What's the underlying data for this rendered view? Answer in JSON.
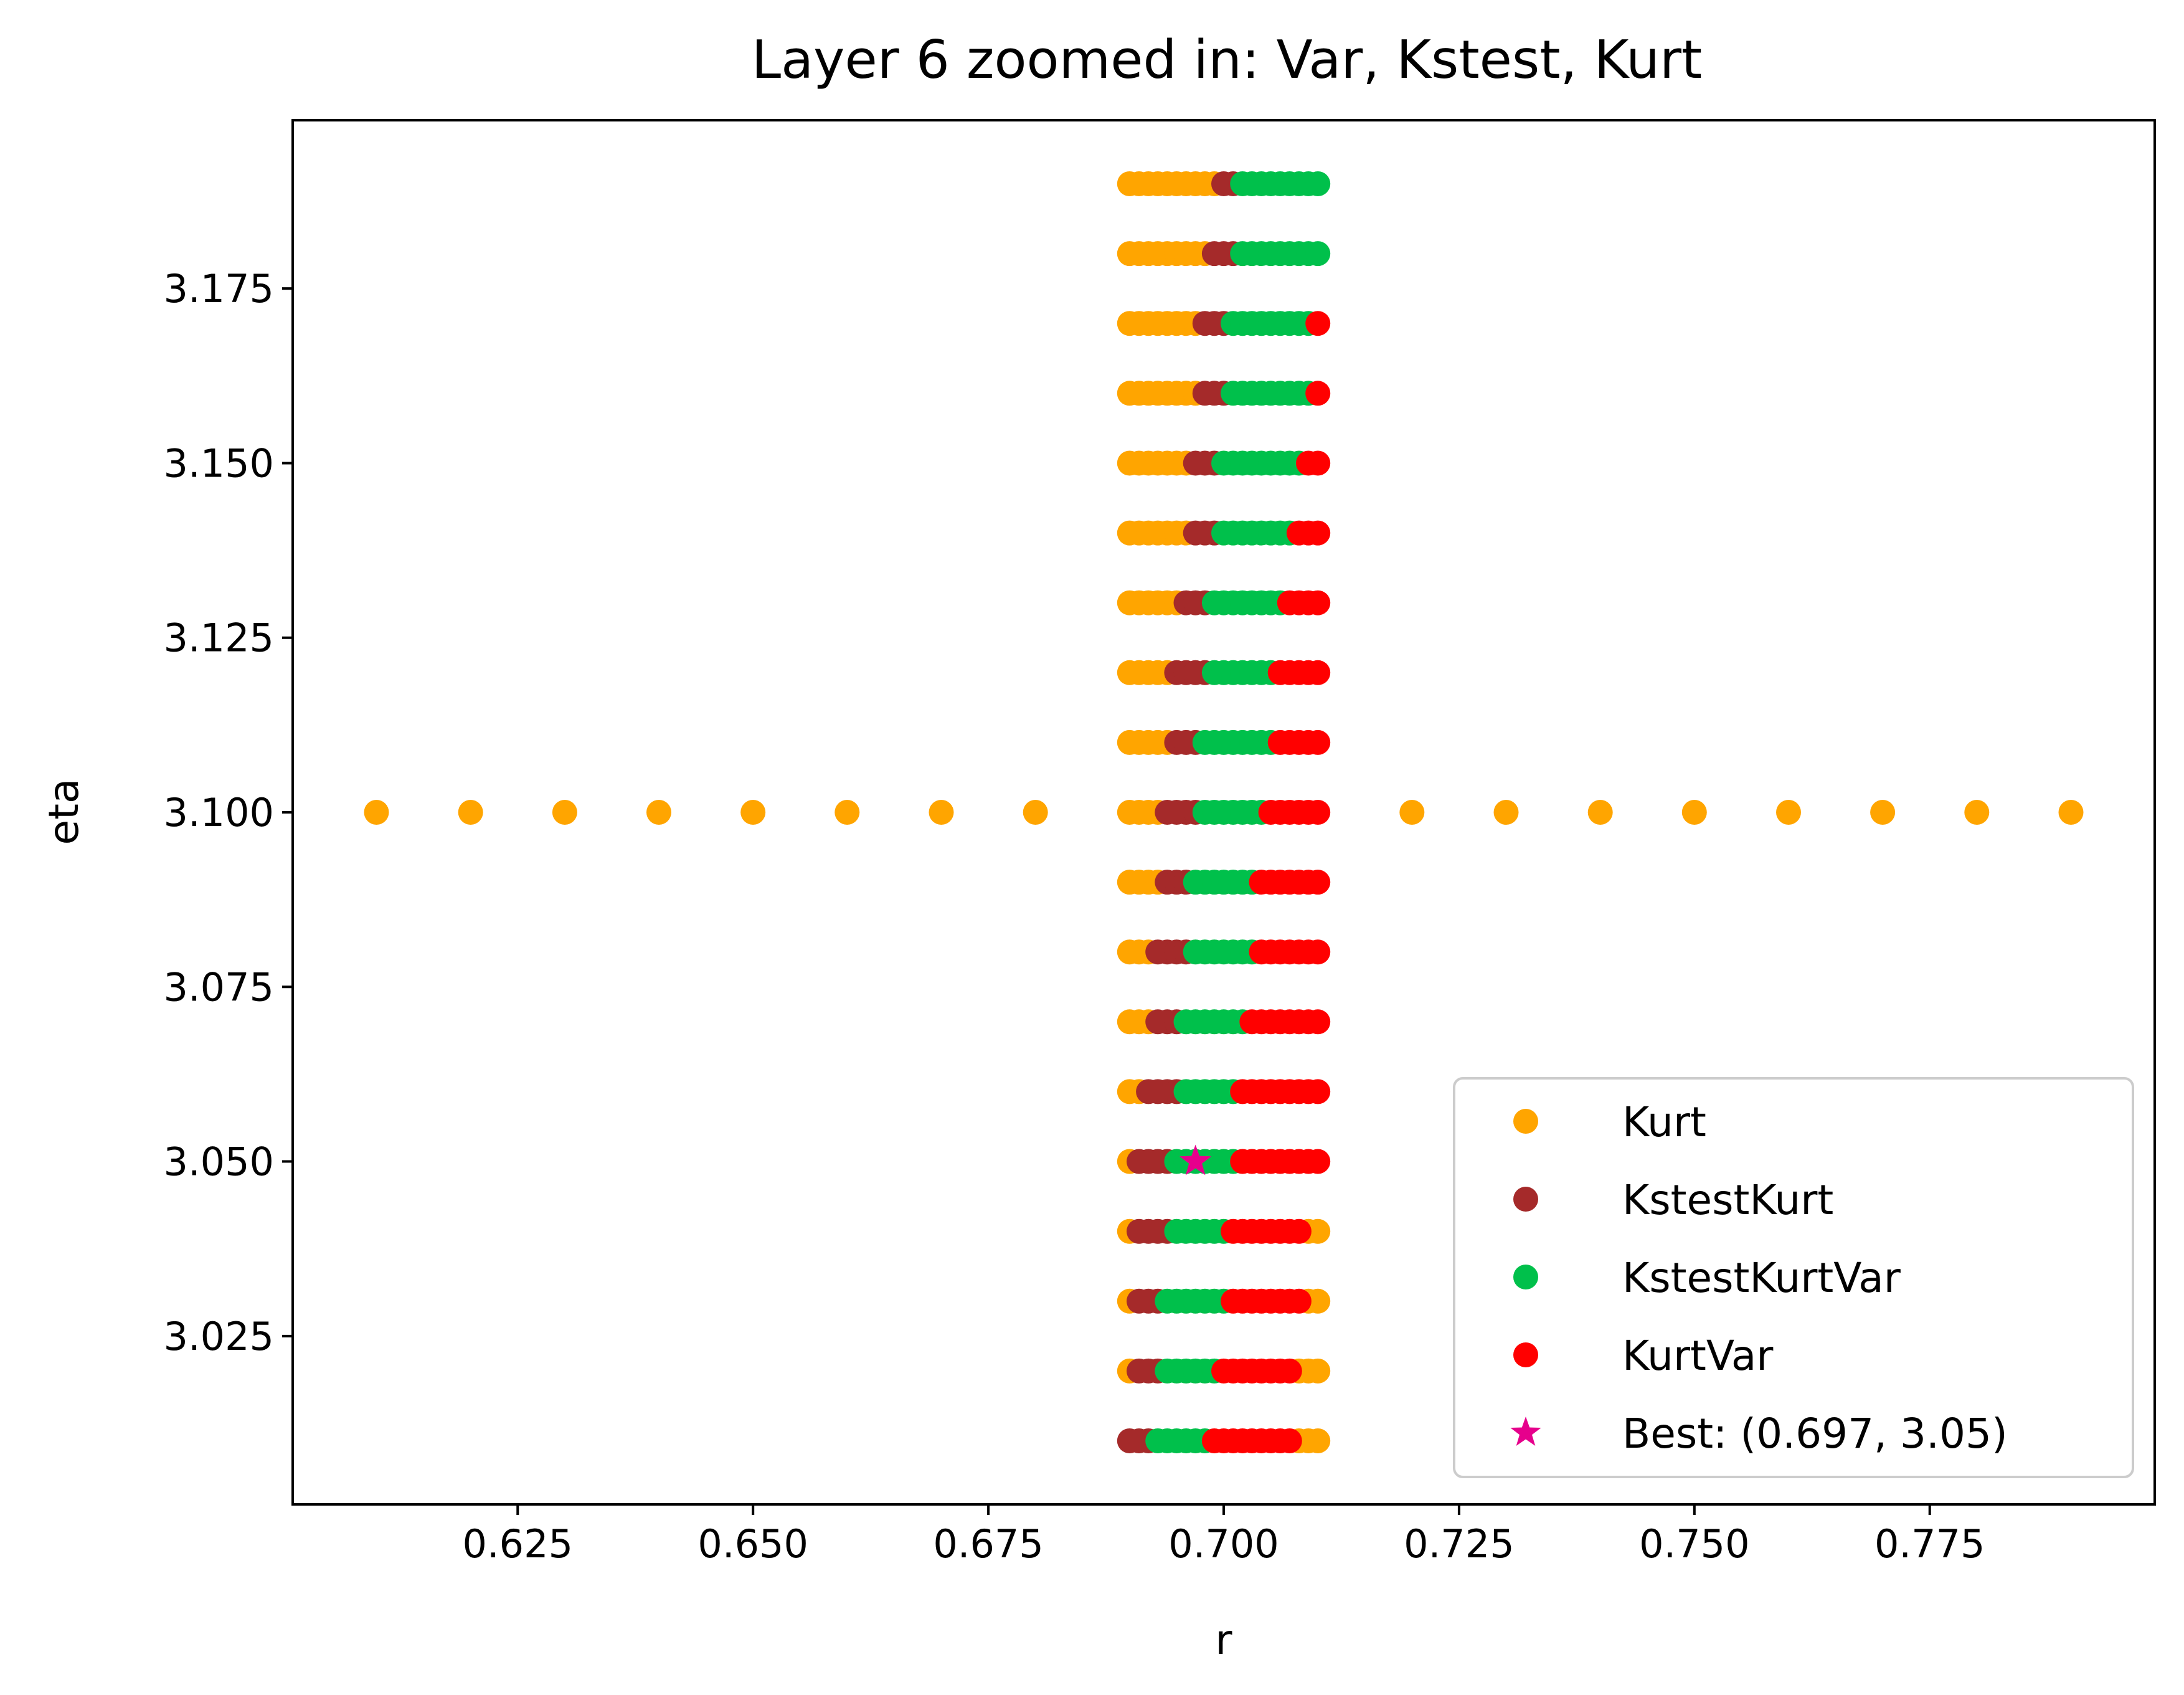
{
  "chart_data": {
    "type": "scatter",
    "title": "Layer 6 zoomed in: Var, Kstest, Kurt",
    "xlabel": "r",
    "ylabel": "eta",
    "xlim": [
      0.6011,
      0.7989
    ],
    "ylim": [
      3.0009,
      3.1991
    ],
    "xticks": [
      0.625,
      0.65,
      0.675,
      0.7,
      0.725,
      0.75,
      0.775
    ],
    "xtick_labels": [
      "0.625",
      "0.650",
      "0.675",
      "0.700",
      "0.725",
      "0.750",
      "0.775"
    ],
    "yticks": [
      3.025,
      3.05,
      3.075,
      3.1,
      3.125,
      3.15,
      3.175
    ],
    "ytick_labels": [
      "3.025",
      "3.050",
      "3.075",
      "3.100",
      "3.125",
      "3.150",
      "3.175"
    ],
    "grid": false,
    "legend_position": "lower-right",
    "eta_rows": [
      3.01,
      3.02,
      3.03,
      3.04,
      3.05,
      3.06,
      3.07,
      3.08,
      3.09,
      3.1,
      3.11,
      3.12,
      3.13,
      3.14,
      3.15,
      3.16,
      3.17,
      3.18,
      3.19
    ],
    "r_grid": {
      "start": 0.69,
      "stop": 0.71,
      "step": 0.001
    },
    "series": [
      {
        "name": "Kurt",
        "color": "#FFA500",
        "marker": "circle",
        "segments": [
          {
            "eta": 3.01,
            "r": [
              0.708,
              0.71
            ]
          },
          {
            "eta": 3.02,
            "r": [
              0.69,
              0.69
            ]
          },
          {
            "eta": 3.02,
            "r": [
              0.708,
              0.71
            ]
          },
          {
            "eta": 3.03,
            "r": [
              0.69,
              0.69
            ]
          },
          {
            "eta": 3.03,
            "r": [
              0.709,
              0.71
            ]
          },
          {
            "eta": 3.04,
            "r": [
              0.69,
              0.69
            ]
          },
          {
            "eta": 3.04,
            "r": [
              0.709,
              0.71
            ]
          },
          {
            "eta": 3.05,
            "r": [
              0.69,
              0.69
            ]
          },
          {
            "eta": 3.06,
            "r": [
              0.69,
              0.691
            ]
          },
          {
            "eta": 3.07,
            "r": [
              0.69,
              0.692
            ]
          },
          {
            "eta": 3.08,
            "r": [
              0.69,
              0.692
            ]
          },
          {
            "eta": 3.09,
            "r": [
              0.69,
              0.693
            ]
          },
          {
            "eta": 3.1,
            "r": [
              0.69,
              0.693
            ]
          },
          {
            "eta": 3.11,
            "r": [
              0.69,
              0.694
            ]
          },
          {
            "eta": 3.12,
            "r": [
              0.69,
              0.694
            ]
          },
          {
            "eta": 3.13,
            "r": [
              0.69,
              0.695
            ]
          },
          {
            "eta": 3.14,
            "r": [
              0.69,
              0.696
            ]
          },
          {
            "eta": 3.15,
            "r": [
              0.69,
              0.696
            ]
          },
          {
            "eta": 3.16,
            "r": [
              0.69,
              0.697
            ]
          },
          {
            "eta": 3.17,
            "r": [
              0.69,
              0.697
            ]
          },
          {
            "eta": 3.18,
            "r": [
              0.69,
              0.698
            ]
          },
          {
            "eta": 3.19,
            "r": [
              0.69,
              0.699
            ]
          }
        ],
        "extra_points": [
          [
            0.61,
            3.1
          ],
          [
            0.62,
            3.1
          ],
          [
            0.63,
            3.1
          ],
          [
            0.64,
            3.1
          ],
          [
            0.65,
            3.1
          ],
          [
            0.66,
            3.1
          ],
          [
            0.67,
            3.1
          ],
          [
            0.68,
            3.1
          ],
          [
            0.72,
            3.1
          ],
          [
            0.73,
            3.1
          ],
          [
            0.74,
            3.1
          ],
          [
            0.75,
            3.1
          ],
          [
            0.76,
            3.1
          ],
          [
            0.77,
            3.1
          ],
          [
            0.78,
            3.1
          ],
          [
            0.79,
            3.1
          ]
        ]
      },
      {
        "name": "KstestKurt",
        "color": "#A52A2A",
        "marker": "circle",
        "segments": [
          {
            "eta": 3.01,
            "r": [
              0.69,
              0.692
            ]
          },
          {
            "eta": 3.02,
            "r": [
              0.691,
              0.693
            ]
          },
          {
            "eta": 3.03,
            "r": [
              0.691,
              0.693
            ]
          },
          {
            "eta": 3.04,
            "r": [
              0.691,
              0.694
            ]
          },
          {
            "eta": 3.05,
            "r": [
              0.691,
              0.694
            ]
          },
          {
            "eta": 3.06,
            "r": [
              0.692,
              0.695
            ]
          },
          {
            "eta": 3.07,
            "r": [
              0.693,
              0.695
            ]
          },
          {
            "eta": 3.08,
            "r": [
              0.693,
              0.696
            ]
          },
          {
            "eta": 3.09,
            "r": [
              0.694,
              0.696
            ]
          },
          {
            "eta": 3.1,
            "r": [
              0.694,
              0.697
            ]
          },
          {
            "eta": 3.11,
            "r": [
              0.695,
              0.697
            ]
          },
          {
            "eta": 3.12,
            "r": [
              0.695,
              0.698
            ]
          },
          {
            "eta": 3.13,
            "r": [
              0.696,
              0.698
            ]
          },
          {
            "eta": 3.14,
            "r": [
              0.697,
              0.699
            ]
          },
          {
            "eta": 3.15,
            "r": [
              0.697,
              0.699
            ]
          },
          {
            "eta": 3.16,
            "r": [
              0.698,
              0.7
            ]
          },
          {
            "eta": 3.17,
            "r": [
              0.698,
              0.7
            ]
          },
          {
            "eta": 3.18,
            "r": [
              0.699,
              0.701
            ]
          },
          {
            "eta": 3.19,
            "r": [
              0.7,
              0.701
            ]
          }
        ],
        "extra_points": []
      },
      {
        "name": "KstestKurtVar",
        "color": "#00C04B",
        "marker": "circle",
        "segments": [
          {
            "eta": 3.01,
            "r": [
              0.693,
              0.698
            ]
          },
          {
            "eta": 3.02,
            "r": [
              0.694,
              0.699
            ]
          },
          {
            "eta": 3.03,
            "r": [
              0.694,
              0.7
            ]
          },
          {
            "eta": 3.04,
            "r": [
              0.695,
              0.7
            ]
          },
          {
            "eta": 3.05,
            "r": [
              0.695,
              0.701
            ]
          },
          {
            "eta": 3.06,
            "r": [
              0.696,
              0.701
            ]
          },
          {
            "eta": 3.07,
            "r": [
              0.696,
              0.702
            ]
          },
          {
            "eta": 3.08,
            "r": [
              0.697,
              0.703
            ]
          },
          {
            "eta": 3.09,
            "r": [
              0.697,
              0.703
            ]
          },
          {
            "eta": 3.1,
            "r": [
              0.698,
              0.704
            ]
          },
          {
            "eta": 3.11,
            "r": [
              0.698,
              0.705
            ]
          },
          {
            "eta": 3.12,
            "r": [
              0.699,
              0.705
            ]
          },
          {
            "eta": 3.13,
            "r": [
              0.699,
              0.706
            ]
          },
          {
            "eta": 3.14,
            "r": [
              0.7,
              0.707
            ]
          },
          {
            "eta": 3.15,
            "r": [
              0.7,
              0.708
            ]
          },
          {
            "eta": 3.16,
            "r": [
              0.701,
              0.709
            ]
          },
          {
            "eta": 3.17,
            "r": [
              0.701,
              0.709
            ]
          },
          {
            "eta": 3.18,
            "r": [
              0.702,
              0.71
            ]
          },
          {
            "eta": 3.19,
            "r": [
              0.702,
              0.71
            ]
          }
        ],
        "extra_points": []
      },
      {
        "name": "KurtVar",
        "color": "#FF0000",
        "marker": "circle",
        "segments": [
          {
            "eta": 3.01,
            "r": [
              0.699,
              0.707
            ]
          },
          {
            "eta": 3.02,
            "r": [
              0.7,
              0.707
            ]
          },
          {
            "eta": 3.03,
            "r": [
              0.701,
              0.708
            ]
          },
          {
            "eta": 3.04,
            "r": [
              0.701,
              0.708
            ]
          },
          {
            "eta": 3.05,
            "r": [
              0.702,
              0.71
            ]
          },
          {
            "eta": 3.06,
            "r": [
              0.702,
              0.71
            ]
          },
          {
            "eta": 3.07,
            "r": [
              0.703,
              0.71
            ]
          },
          {
            "eta": 3.08,
            "r": [
              0.704,
              0.71
            ]
          },
          {
            "eta": 3.09,
            "r": [
              0.704,
              0.71
            ]
          },
          {
            "eta": 3.1,
            "r": [
              0.705,
              0.71
            ]
          },
          {
            "eta": 3.11,
            "r": [
              0.706,
              0.71
            ]
          },
          {
            "eta": 3.12,
            "r": [
              0.706,
              0.71
            ]
          },
          {
            "eta": 3.13,
            "r": [
              0.707,
              0.71
            ]
          },
          {
            "eta": 3.14,
            "r": [
              0.708,
              0.71
            ]
          },
          {
            "eta": 3.15,
            "r": [
              0.709,
              0.71
            ]
          },
          {
            "eta": 3.16,
            "r": [
              0.71,
              0.71
            ]
          },
          {
            "eta": 3.17,
            "r": [
              0.71,
              0.71
            ]
          }
        ],
        "extra_points": []
      }
    ],
    "best": {
      "name": "Best: (0.697, 3.05)",
      "color": "#E6008C",
      "marker": "star",
      "x": 0.697,
      "y": 3.05
    }
  }
}
